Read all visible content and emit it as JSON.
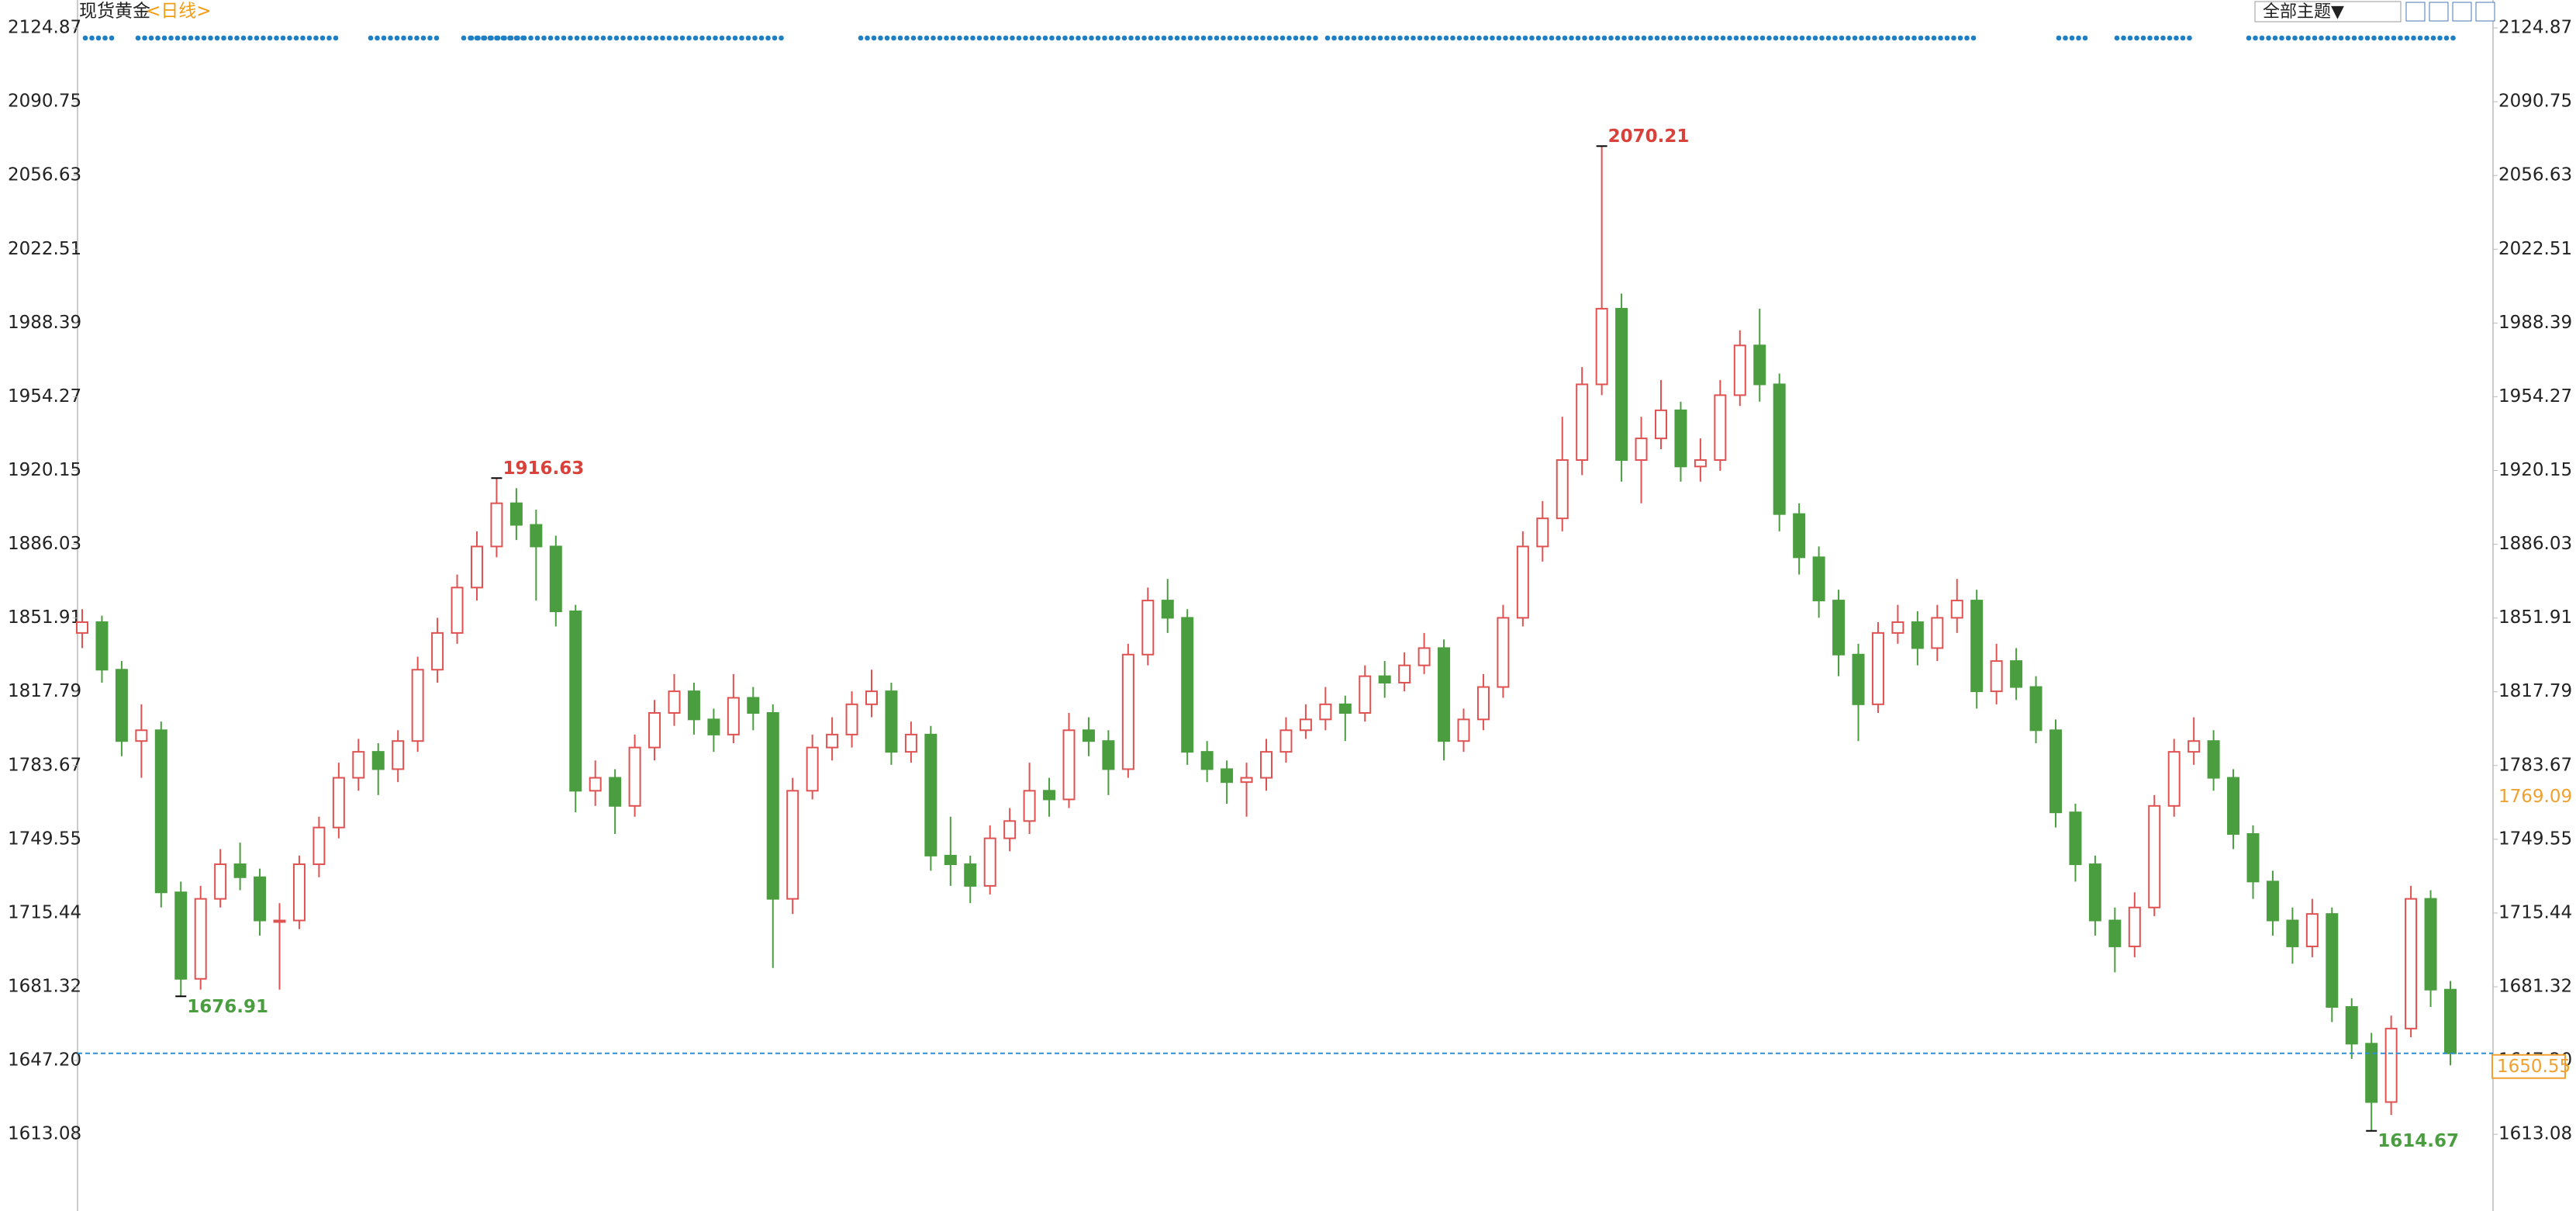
{
  "header": {
    "title": "现货黄金",
    "period": "<日线>",
    "theme_button": "全部主题▼"
  },
  "chart_data": {
    "type": "candlestick",
    "up_color": "#e05252",
    "down_color": "#4a9e3f",
    "ylim": [
      1577.6,
      2137.8
    ],
    "yticks": [
      2124.87,
      2090.75,
      2056.63,
      2022.51,
      1988.39,
      1954.27,
      1920.15,
      1886.03,
      1851.91,
      1817.79,
      1783.67,
      1749.55,
      1715.44,
      1681.32,
      {
        "value": 1647.2,
        "label": "1647.20"
      },
      1613.08
    ],
    "grid": false,
    "marker_price": 1769.09,
    "open": [
      1845,
      1850,
      1828,
      1795,
      1800,
      1725,
      1685,
      1722,
      1738,
      1732,
      1712,
      1712,
      1738,
      1755,
      1778,
      1790,
      1782,
      1795,
      1828,
      1845,
      1866,
      1885,
      1905,
      1895,
      1885,
      1855,
      1772,
      1778,
      1765,
      1792,
      1808,
      1818,
      1805,
      1798,
      1815,
      1808,
      1722,
      1772,
      1792,
      1798,
      1812,
      1818,
      1790,
      1798,
      1742,
      1738,
      1728,
      1750,
      1758,
      1772,
      1768,
      1800,
      1795,
      1782,
      1835,
      1860,
      1852,
      1790,
      1782,
      1776,
      1778,
      1790,
      1800,
      1805,
      1812,
      1808,
      1825,
      1822,
      1830,
      1838,
      1795,
      1805,
      1820,
      1852,
      1885,
      1898,
      1925,
      1960,
      1995,
      1925,
      1935,
      1948,
      1922,
      1925,
      1955,
      1978,
      1960,
      1900,
      1880,
      1860,
      1835,
      1812,
      1845,
      1850,
      1838,
      1852,
      1860,
      1818,
      1832,
      1820,
      1800,
      1762,
      1738,
      1712,
      1700,
      1718,
      1765,
      1790,
      1795,
      1778,
      1752,
      1730,
      1712,
      1700,
      1715,
      1672,
      1655,
      1628,
      1662,
      1722,
      1680
    ],
    "high": [
      1856,
      1853,
      1832,
      1812,
      1804,
      1730,
      1728,
      1745,
      1748,
      1736,
      1720,
      1742,
      1760,
      1785,
      1796,
      1794,
      1800,
      1834,
      1852,
      1872,
      1892,
      1916.63,
      1912,
      1902,
      1890,
      1858,
      1786,
      1782,
      1798,
      1814,
      1826,
      1822,
      1810,
      1826,
      1820,
      1812,
      1778,
      1798,
      1806,
      1818,
      1828,
      1822,
      1804,
      1802,
      1760,
      1742,
      1756,
      1764,
      1785,
      1778,
      1808,
      1806,
      1800,
      1840,
      1866,
      1870,
      1856,
      1795,
      1786,
      1785,
      1796,
      1806,
      1812,
      1820,
      1816,
      1830,
      1832,
      1836,
      1845,
      1842,
      1810,
      1826,
      1858,
      1892,
      1906,
      1945,
      1968,
      2070.21,
      2002,
      1945,
      1962,
      1952,
      1935,
      1962,
      1985,
      1995,
      1965,
      1905,
      1885,
      1865,
      1840,
      1850,
      1858,
      1855,
      1858,
      1870,
      1865,
      1840,
      1838,
      1825,
      1805,
      1766,
      1742,
      1718,
      1725,
      1770,
      1796,
      1806,
      1800,
      1782,
      1756,
      1735,
      1718,
      1722,
      1718,
      1676,
      1660,
      1668,
      1728,
      1726,
      1684
    ],
    "low": [
      1838,
      1822,
      1788,
      1778,
      1718,
      1676.91,
      1680,
      1718,
      1726,
      1705,
      1680,
      1708,
      1732,
      1750,
      1772,
      1770,
      1776,
      1790,
      1822,
      1840,
      1860,
      1880,
      1888,
      1860,
      1848,
      1762,
      1765,
      1752,
      1760,
      1786,
      1802,
      1798,
      1790,
      1794,
      1800,
      1690,
      1715,
      1768,
      1786,
      1792,
      1806,
      1784,
      1785,
      1735,
      1728,
      1720,
      1724,
      1744,
      1752,
      1760,
      1764,
      1788,
      1770,
      1778,
      1830,
      1845,
      1784,
      1776,
      1766,
      1760,
      1772,
      1785,
      1796,
      1800,
      1795,
      1804,
      1815,
      1818,
      1826,
      1786,
      1790,
      1800,
      1815,
      1848,
      1878,
      1892,
      1918,
      1955,
      1915,
      1905,
      1930,
      1915,
      1915,
      1920,
      1950,
      1952,
      1892,
      1872,
      1852,
      1825,
      1795,
      1808,
      1840,
      1830,
      1832,
      1845,
      1810,
      1812,
      1814,
      1794,
      1755,
      1730,
      1705,
      1688,
      1695,
      1714,
      1760,
      1784,
      1772,
      1745,
      1722,
      1705,
      1692,
      1695,
      1665,
      1648,
      1614.67,
      1622,
      1658,
      1672,
      1645
    ],
    "close": [
      1850,
      1828,
      1795,
      1800,
      1725,
      1685,
      1722,
      1738,
      1732,
      1712,
      1712,
      1738,
      1755,
      1778,
      1790,
      1782,
      1795,
      1828,
      1845,
      1866,
      1885,
      1905,
      1895,
      1885,
      1855,
      1772,
      1778,
      1765,
      1792,
      1808,
      1818,
      1805,
      1798,
      1815,
      1808,
      1722,
      1772,
      1792,
      1798,
      1812,
      1818,
      1790,
      1798,
      1742,
      1738,
      1728,
      1750,
      1758,
      1772,
      1768,
      1800,
      1795,
      1782,
      1835,
      1860,
      1852,
      1790,
      1782,
      1776,
      1778,
      1790,
      1800,
      1805,
      1812,
      1808,
      1825,
      1822,
      1830,
      1838,
      1795,
      1805,
      1820,
      1852,
      1885,
      1898,
      1925,
      1960,
      1995,
      1925,
      1935,
      1948,
      1922,
      1925,
      1955,
      1978,
      1960,
      1900,
      1880,
      1860,
      1835,
      1812,
      1845,
      1850,
      1838,
      1852,
      1860,
      1818,
      1832,
      1820,
      1800,
      1762,
      1738,
      1712,
      1700,
      1718,
      1765,
      1790,
      1795,
      1778,
      1752,
      1730,
      1712,
      1700,
      1715,
      1672,
      1655,
      1628,
      1662,
      1722,
      1680,
      1650.55
    ]
  }
}
